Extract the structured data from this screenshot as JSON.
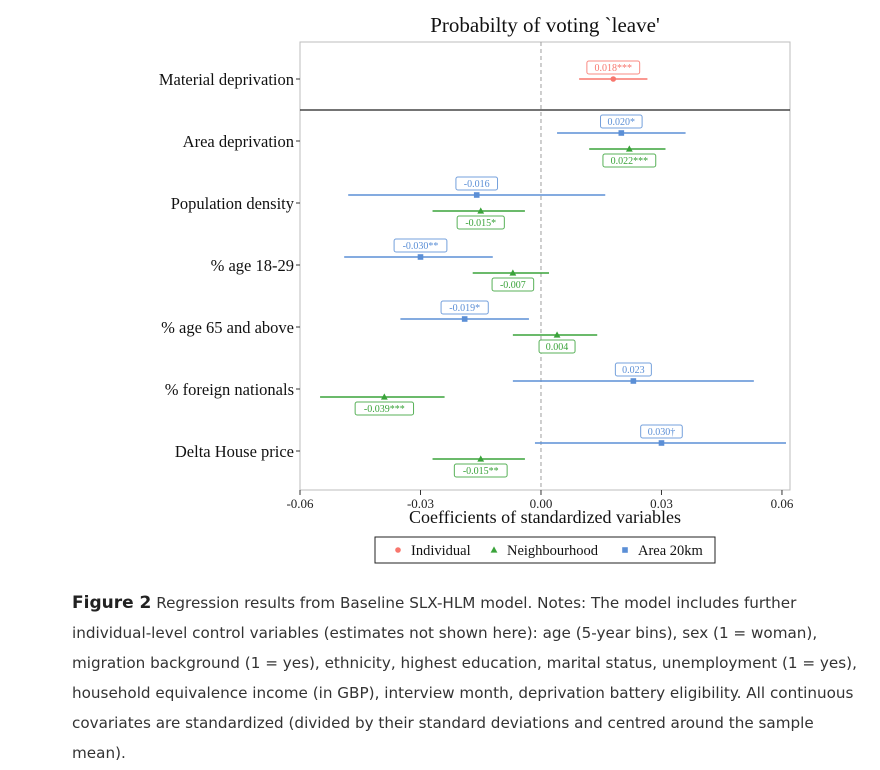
{
  "chart_data": {
    "type": "coefficient-plot",
    "title": "Probabilty of voting `leave'",
    "xlabel": "Coefficients of standardized variables",
    "ylabel": "",
    "xlim": [
      -0.06,
      0.062
    ],
    "xticks": [
      "-0.06",
      "-0.03",
      "0.00",
      "0.03",
      "0.06"
    ],
    "xtick_values": [
      -0.06,
      -0.03,
      0.0,
      0.03,
      0.06
    ],
    "reference_line": 0,
    "legend_position": "bottom",
    "series": [
      {
        "name": "Individual",
        "color": "#f8766d",
        "marker": "circle"
      },
      {
        "name": "Neighbourhood",
        "color": "#3aa33a",
        "marker": "triangle"
      },
      {
        "name": "Area 20km",
        "color": "#5b8fd6",
        "marker": "square"
      }
    ],
    "rows": [
      {
        "label": "Material deprivation",
        "estimates": [
          {
            "series": "Individual",
            "estimate": 0.018,
            "ci": [
              0.0095,
              0.0265
            ],
            "label": "0.018***"
          }
        ]
      },
      {
        "label": "Area deprivation",
        "estimates": [
          {
            "series": "Area 20km",
            "estimate": 0.02,
            "ci": [
              0.004,
              0.036
            ],
            "label": "0.020*"
          },
          {
            "series": "Neighbourhood",
            "estimate": 0.022,
            "ci": [
              0.012,
              0.031
            ],
            "label": "0.022***"
          }
        ]
      },
      {
        "label": "Population density",
        "estimates": [
          {
            "series": "Area 20km",
            "estimate": -0.016,
            "ci": [
              -0.048,
              0.016
            ],
            "label": "-0.016"
          },
          {
            "series": "Neighbourhood",
            "estimate": -0.015,
            "ci": [
              -0.027,
              -0.004
            ],
            "label": "-0.015*"
          }
        ]
      },
      {
        "label": "% age 18-29",
        "estimates": [
          {
            "series": "Area 20km",
            "estimate": -0.03,
            "ci": [
              -0.049,
              -0.012
            ],
            "label": "-0.030**"
          },
          {
            "series": "Neighbourhood",
            "estimate": -0.007,
            "ci": [
              -0.017,
              0.002
            ],
            "label": "-0.007"
          }
        ]
      },
      {
        "label": "% age 65 and above",
        "estimates": [
          {
            "series": "Area 20km",
            "estimate": -0.019,
            "ci": [
              -0.035,
              -0.003
            ],
            "label": "-0.019*"
          },
          {
            "series": "Neighbourhood",
            "estimate": 0.004,
            "ci": [
              -0.007,
              0.014
            ],
            "label": "0.004"
          }
        ]
      },
      {
        "label": "% foreign nationals",
        "estimates": [
          {
            "series": "Area 20km",
            "estimate": 0.023,
            "ci": [
              -0.007,
              0.053
            ],
            "label": "0.023"
          },
          {
            "series": "Neighbourhood",
            "estimate": -0.039,
            "ci": [
              -0.055,
              -0.024
            ],
            "label": "-0.039***"
          }
        ]
      },
      {
        "label": "Delta House price",
        "estimates": [
          {
            "series": "Area 20km",
            "estimate": 0.03,
            "ci": [
              -0.0015,
              0.061
            ],
            "label": "0.030†"
          },
          {
            "series": "Neighbourhood",
            "estimate": -0.015,
            "ci": [
              -0.027,
              -0.004
            ],
            "label": "-0.015**"
          }
        ]
      }
    ]
  },
  "caption": {
    "label": "Figure 2",
    "text": "Regression results from Baseline SLX-HLM model. Notes: The model includes further individual-level control variables (estimates not shown here): age (5-year bins), sex (1 = woman), migration background (1 = yes), ethnicity, highest education, marital status, unemployment (1 = yes), household equivalence income (in GBP), interview month, deprivation battery eligibility. All continuous covariates are standardized (divided by their standard deviations and centred around the sample mean)."
  }
}
